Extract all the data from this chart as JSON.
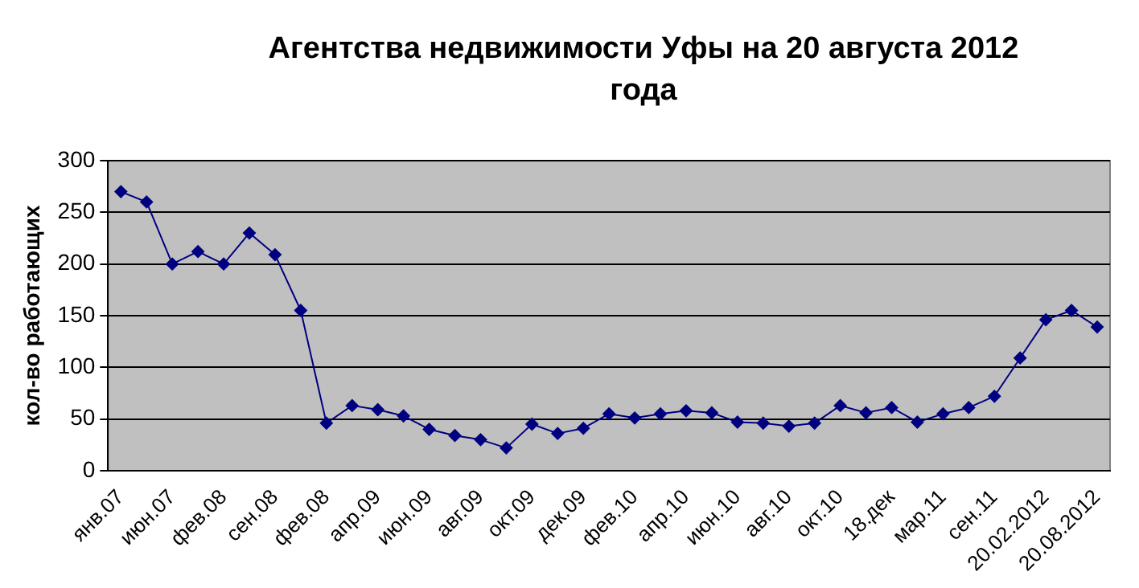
{
  "chart_data": {
    "type": "line",
    "title": "Агентства недвижимости Уфы на 20 августа 2012 года",
    "ylabel": "кол-во работающих",
    "categories": [
      "янв.07",
      null,
      "июн.07",
      null,
      "фев.08",
      null,
      "сен.08",
      null,
      "фев.08",
      null,
      "апр.09",
      null,
      "июн.09",
      null,
      "авг.09",
      null,
      "окт.09",
      null,
      "дек.09",
      null,
      "фев.10",
      null,
      "апр.10",
      null,
      "июн.10",
      null,
      "авг.10",
      null,
      "окт.10",
      null,
      "18.дек",
      null,
      "мар.11",
      null,
      "сен.11",
      null,
      "20.02.2012",
      null,
      "20.08.2012"
    ],
    "series": [
      {
        "color": "#000080",
        "values": [
          270,
          260,
          200,
          212,
          200,
          230,
          209,
          155,
          46,
          63,
          59,
          53,
          40,
          34,
          30,
          22,
          45,
          36,
          41,
          55,
          51,
          55,
          58,
          56,
          47,
          46,
          43,
          46,
          63,
          56,
          61,
          47,
          55,
          61,
          72,
          109,
          146,
          155,
          139
        ]
      }
    ],
    "ylim": [
      0,
      300
    ],
    "yticks": [
      0,
      50,
      100,
      150,
      200,
      250,
      300
    ],
    "grid": "y",
    "legend": false,
    "marker": "diamond",
    "line_style": "solid"
  }
}
